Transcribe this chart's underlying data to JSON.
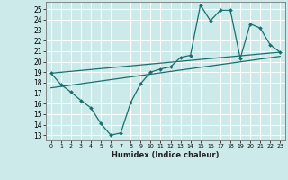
{
  "title": "",
  "xlabel": "Humidex (Indice chaleur)",
  "bg_color": "#cceaea",
  "grid_color": "#ffffff",
  "line_color": "#1a6e6e",
  "xlim": [
    -0.5,
    23.5
  ],
  "ylim": [
    12.5,
    25.7
  ],
  "yticks": [
    13,
    14,
    15,
    16,
    17,
    18,
    19,
    20,
    21,
    22,
    23,
    24,
    25
  ],
  "xticks": [
    0,
    1,
    2,
    3,
    4,
    5,
    6,
    7,
    8,
    9,
    10,
    11,
    12,
    13,
    14,
    15,
    16,
    17,
    18,
    19,
    20,
    21,
    22,
    23
  ],
  "series1_x": [
    0,
    1,
    2,
    3,
    4,
    5,
    6,
    7,
    8,
    9,
    10,
    11,
    12,
    13,
    14,
    15,
    16,
    17,
    18,
    19,
    20,
    21,
    22,
    23
  ],
  "series1_y": [
    18.9,
    17.8,
    17.1,
    16.3,
    15.6,
    14.1,
    13.0,
    13.2,
    16.1,
    17.9,
    19.0,
    19.3,
    19.5,
    20.4,
    20.6,
    25.4,
    23.9,
    24.9,
    24.9,
    20.3,
    23.6,
    23.2,
    21.6,
    20.9
  ],
  "trend1_x": [
    0,
    23
  ],
  "trend1_y": [
    17.5,
    20.5
  ],
  "trend2_x": [
    0,
    23
  ],
  "trend2_y": [
    18.9,
    20.9
  ]
}
